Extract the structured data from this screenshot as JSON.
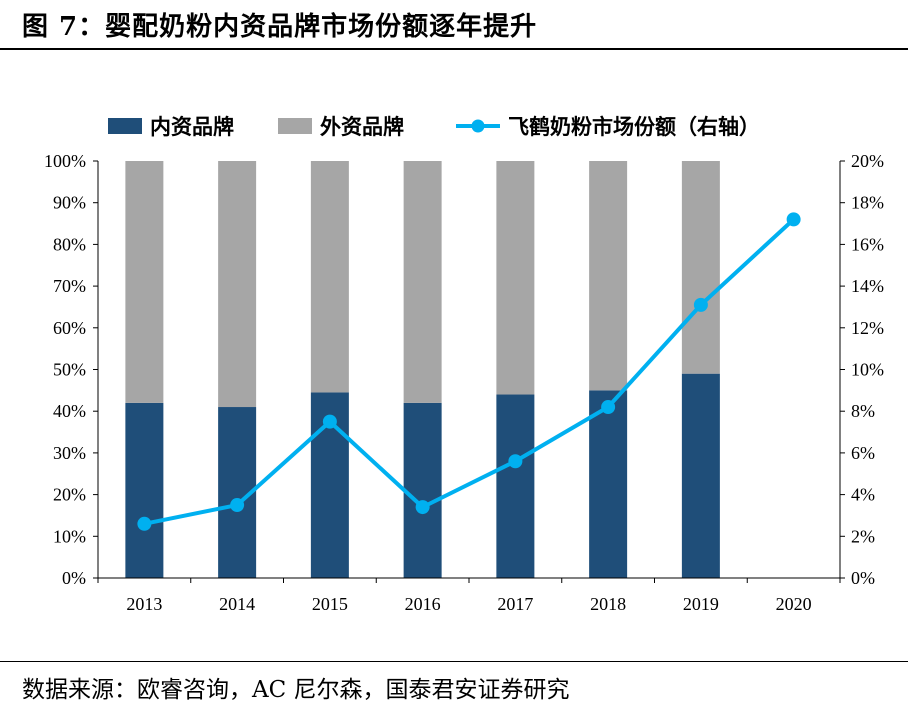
{
  "figure": {
    "title": "图 7：婴配奶粉内资品牌市场份额逐年提升",
    "source": "数据来源：欧睿咨询，AC 尼尔森，国泰君安证券研究"
  },
  "chart_data": {
    "type": "bar",
    "stacked": true,
    "categories": [
      "2013",
      "2014",
      "2015",
      "2016",
      "2017",
      "2018",
      "2019",
      "2020"
    ],
    "y_left": {
      "min": 0,
      "max": 100,
      "step": 10,
      "unit": "%"
    },
    "y_right": {
      "min": 0,
      "max": 20,
      "step": 2,
      "unit": "%"
    },
    "grid": false,
    "legend_position": "top",
    "series": [
      {
        "name": "内资品牌",
        "type": "bar",
        "axis": "left",
        "color": "#1F4E79",
        "values": [
          42,
          41,
          44.5,
          42,
          44,
          45,
          49,
          null
        ]
      },
      {
        "name": "外资品牌",
        "type": "bar",
        "axis": "left",
        "color": "#A6A6A6",
        "values": [
          58,
          59,
          55.5,
          58,
          56,
          55,
          51,
          null
        ]
      },
      {
        "name": "飞鹤奶粉市场份额（右轴）",
        "type": "line",
        "axis": "right",
        "color": "#00B0F0",
        "values": [
          2.6,
          3.5,
          7.5,
          3.4,
          5.6,
          8.2,
          13.1,
          17.2
        ]
      }
    ]
  }
}
